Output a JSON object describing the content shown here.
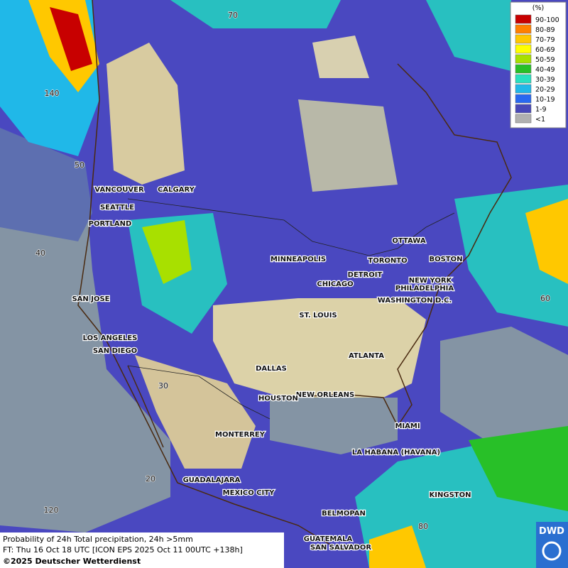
{
  "map": {
    "cities": [
      "VANCOUVER",
      "CALGARY",
      "SEATTLE",
      "PORTLAND",
      "MINNEAPOLIS",
      "OTTAWA",
      "TORONTO",
      "BOSTON",
      "DETROIT",
      "CHICAGO",
      "NEW YORK",
      "PHILADELPHIA",
      "WASHINGTON D.C.",
      "SAN JOSE",
      "ST. LOUIS",
      "LOS ANGELES",
      "SAN DIEGO",
      "ATLANTA",
      "DALLAS",
      "NEW ORLEANS",
      "HOUSTON",
      "MIAMI",
      "MONTERREY",
      "LA HABANA (HAVANA)",
      "GUADALAJARA",
      "MEXICO CITY",
      "KINGSTON",
      "BELMOPAN",
      "GUATEMALA",
      "SAN SALVADOR"
    ],
    "graticule_labels": [
      "70",
      "140",
      "50",
      "40",
      "60",
      "30",
      "20",
      "120",
      "80"
    ],
    "legend": {
      "title": "(%)",
      "entries": [
        {
          "label": "90-100",
          "color": "#c80000"
        },
        {
          "label": "80-89",
          "color": "#ff8000"
        },
        {
          "label": "70-79",
          "color": "#ffc800"
        },
        {
          "label": "60-69",
          "color": "#ffff00"
        },
        {
          "label": "50-59",
          "color": "#a8e000"
        },
        {
          "label": "40-49",
          "color": "#28c028"
        },
        {
          "label": "30-39",
          "color": "#28e0c0"
        },
        {
          "label": "20-29",
          "color": "#20b8e8"
        },
        {
          "label": "10-19",
          "color": "#2868f0"
        },
        {
          "label": "1-9",
          "color": "#4848b8"
        },
        {
          "label": "<1",
          "color": "#b0b0b0"
        }
      ]
    },
    "footer": [
      "Probability of 24h Total precipitation, 24h >5mm",
      "FT: Thu 16 Oct 18 UTC [ICON EPS 2025 Oct 11 00UTC +138h]",
      "©2025 Deutscher Wetterdienst"
    ],
    "logo": "DWD"
  }
}
